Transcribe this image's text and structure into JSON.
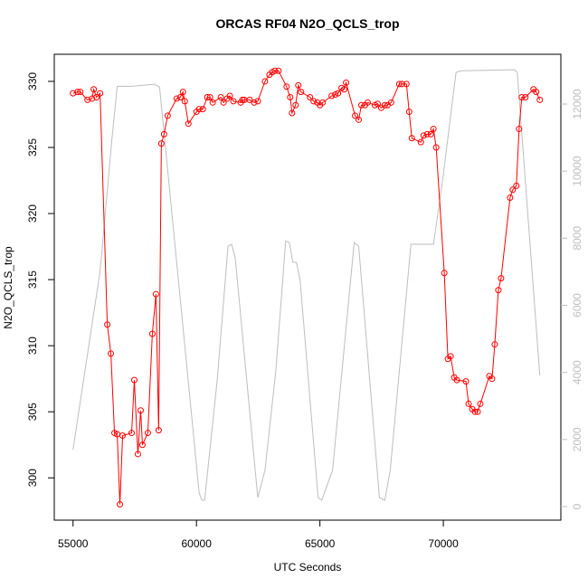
{
  "chart_data": {
    "type": "line",
    "title": "ORCAS RF04 N2O_QCLS_trop",
    "x_label": "UTC Seconds",
    "y_label": "N2O_QCLS_trop",
    "xlim": [
      54240,
      74760
    ],
    "xticks": [
      55000,
      60000,
      65000,
      70000
    ],
    "ylim": [
      296.8,
      332.05
    ],
    "yticks": [
      300,
      305,
      310,
      315,
      320,
      325,
      330
    ],
    "y2lim": [
      -404,
      13483
    ],
    "y2ticks": [
      0,
      2000,
      4000,
      6000,
      8000,
      10000,
      12000
    ],
    "series": [
      {
        "color": "#ff0000",
        "markers": true,
        "x": [
          55000,
          55183,
          55292,
          55584,
          55767,
          55840,
          55949,
          56095,
          56387,
          56533,
          56679,
          56789,
          56898,
          57008,
          57373,
          57482,
          57628,
          57738,
          57811,
          58030,
          58212,
          58358,
          58468,
          58577,
          58687,
          58833,
          59198,
          59344,
          59453,
          59526,
          59672,
          60001,
          60110,
          60256,
          60439,
          60548,
          60658,
          60986,
          61096,
          61242,
          61351,
          61497,
          61789,
          61862,
          61935,
          62154,
          62337,
          62483,
          62775,
          62957,
          63067,
          63176,
          63322,
          63651,
          63797,
          63870,
          64016,
          64125,
          64235,
          64600,
          64746,
          64892,
          65001,
          65111,
          65476,
          65622,
          65731,
          65877,
          65987,
          66060,
          66425,
          66571,
          66680,
          66826,
          66936,
          67228,
          67337,
          67483,
          67629,
          67739,
          67885,
          68213,
          68323,
          68505,
          68615,
          68724,
          69089,
          69199,
          69345,
          69491,
          69600,
          69710,
          70038,
          70184,
          70294,
          70440,
          70549,
          70914,
          71024,
          71170,
          71279,
          71389,
          71498,
          71863,
          71973,
          72082,
          72228,
          72338,
          72703,
          72812,
          72958,
          73068,
          73177,
          73323,
          73652,
          73761,
          73907
        ],
        "values": [
          329.1,
          329.2,
          329.2,
          328.6,
          328.7,
          329.4,
          328.8,
          329.1,
          311.6,
          309.4,
          303.4,
          303.3,
          298.0,
          303.2,
          303.4,
          307.4,
          301.8,
          305.1,
          302.5,
          303.4,
          310.9,
          313.9,
          303.6,
          325.3,
          326.0,
          327.4,
          328.7,
          328.8,
          329.2,
          328.5,
          326.8,
          327.7,
          327.9,
          327.9,
          328.8,
          328.8,
          328.4,
          328.8,
          328.4,
          328.7,
          328.9,
          328.5,
          328.4,
          328.6,
          328.6,
          328.6,
          328.4,
          328.5,
          330.0,
          330.5,
          330.7,
          330.8,
          330.8,
          329.6,
          328.8,
          327.6,
          328.2,
          329.7,
          329.2,
          328.8,
          328.5,
          328.4,
          328.2,
          328.4,
          328.9,
          329.0,
          329.1,
          329.5,
          329.4,
          329.9,
          327.4,
          327.1,
          328.2,
          328.2,
          328.4,
          328.2,
          328.3,
          328.0,
          328.2,
          328.2,
          328.4,
          329.8,
          329.8,
          329.8,
          327.7,
          325.7,
          325.4,
          325.9,
          326.0,
          326.0,
          326.4,
          325.0,
          315.5,
          309.0,
          309.2,
          307.6,
          307.4,
          307.3,
          305.6,
          305.2,
          305.0,
          305.0,
          305.6,
          307.7,
          307.5,
          310.1,
          314.2,
          315.1,
          321.2,
          321.8,
          322.1,
          326.4,
          328.8,
          328.8,
          329.4,
          329.2,
          328.6
        ]
      },
      {
        "color": "#bebebe",
        "axis": "y2",
        "markers": false,
        "x": [
          55000,
          56095,
          56570,
          56789,
          57373,
          58285,
          58504,
          59198,
          60110,
          60220,
          60329,
          60840,
          61278,
          61424,
          61570,
          62483,
          62775,
          63213,
          63614,
          63760,
          63906,
          64052,
          64198,
          64928,
          65074,
          65512,
          66388,
          66571,
          67410,
          67629,
          67848,
          68688,
          69600,
          69965,
          70513,
          70695,
          72885,
          72994,
          73907
        ],
        "values": [
          1700,
          7010,
          10920,
          12530,
          12530,
          12590,
          12510,
          7280,
          400,
          190,
          190,
          3770,
          7760,
          7820,
          7410,
          270,
          1080,
          4040,
          7920,
          7870,
          7280,
          7280,
          6740,
          270,
          190,
          1080,
          7870,
          7760,
          270,
          190,
          1080,
          7820,
          7820,
          9700,
          12940,
          12990,
          13020,
          12940,
          3910
        ]
      }
    ]
  }
}
